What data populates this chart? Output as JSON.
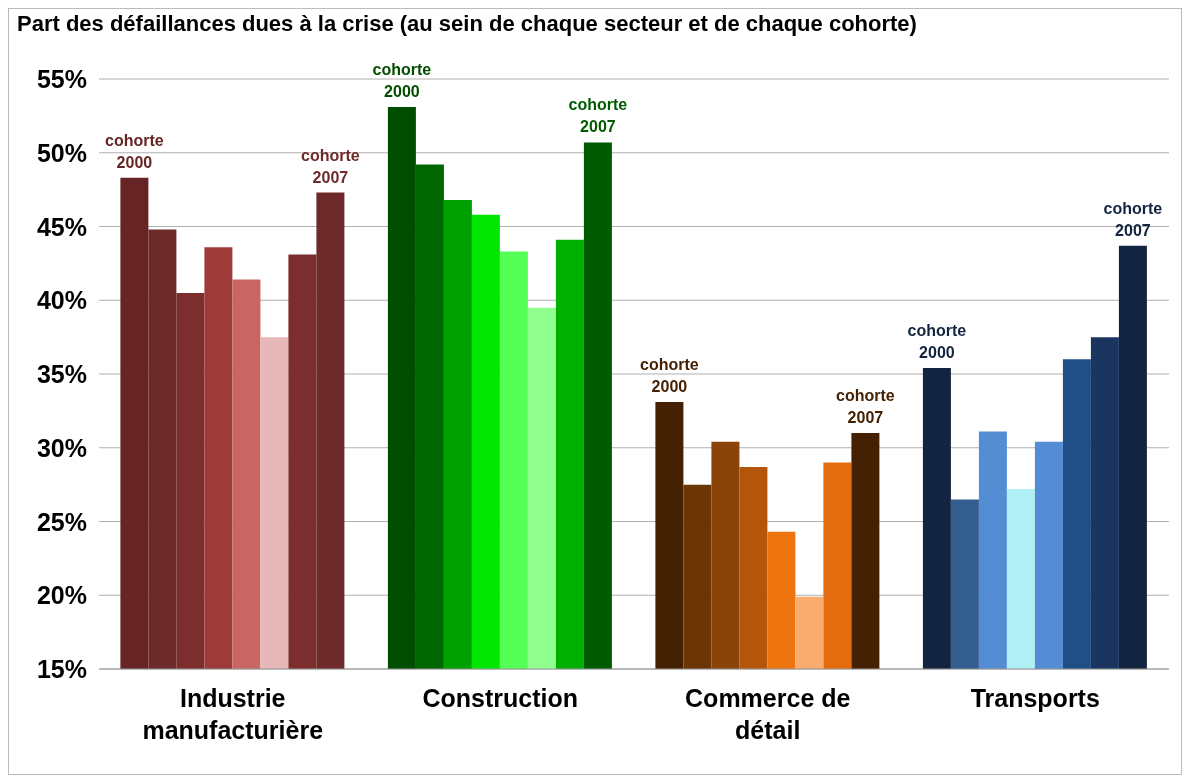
{
  "chart_data": {
    "type": "bar",
    "title": "Part des défaillances dues à la crise (au sein de chaque secteur et de chaque cohorte)",
    "categories": [
      "Industrie manufacturière",
      "Construction",
      "Commerce de détail",
      "Transports"
    ],
    "series": [
      {
        "colors": [
          "#662424",
          "#004d00",
          "#452103",
          "#12243f"
        ],
        "values": [
          48.3,
          53.1,
          33.1,
          35.4
        ]
      },
      {
        "colors": [
          "#6c2a28",
          "#006600",
          "#6b3506",
          "#355e90"
        ],
        "values": [
          44.8,
          49.2,
          27.5,
          26.5
        ]
      },
      {
        "colors": [
          "#7b2e2d",
          "#00a000",
          "#8a4309",
          "#548dd4"
        ],
        "values": [
          40.5,
          46.8,
          30.4,
          31.1
        ]
      },
      {
        "colors": [
          "#9e3b3a",
          "#00e600",
          "#b3560b",
          "#b0f0f4"
        ],
        "values": [
          43.6,
          45.8,
          28.7,
          27.2
        ]
      },
      {
        "colors": [
          "#c96663",
          "#55ff55",
          "#ee7410",
          "#548dd4"
        ],
        "values": [
          41.4,
          43.3,
          24.3,
          30.4
        ]
      },
      {
        "colors": [
          "#e6b8b7",
          "#90ff90",
          "#f8ac6d",
          "#204f88"
        ],
        "values": [
          37.5,
          39.5,
          19.9,
          36.0
        ]
      },
      {
        "colors": [
          "#7b2e2d",
          "#00b000",
          "#e36d0e",
          "#1a3660"
        ],
        "values": [
          43.1,
          44.1,
          29.0,
          37.5
        ]
      },
      {
        "colors": [
          "#6e2a29",
          "#005a00",
          "#452103",
          "#12243f"
        ],
        "values": [
          47.3,
          50.7,
          31.0,
          43.7
        ]
      }
    ],
    "ylim": [
      15,
      55
    ],
    "yticks": [
      {
        "value": 15,
        "label": "15%"
      },
      {
        "value": 20,
        "label": "20%"
      },
      {
        "value": 25,
        "label": "25%"
      },
      {
        "value": 30,
        "label": "30%"
      },
      {
        "value": 35,
        "label": "35%"
      },
      {
        "value": 40,
        "label": "40%"
      },
      {
        "value": 45,
        "label": "45%"
      },
      {
        "value": 50,
        "label": "50%"
      },
      {
        "value": 55,
        "label": "55%"
      }
    ],
    "grid": "y",
    "legend": false,
    "annotations": [
      "cohorte 2000",
      "cohorte 2007",
      "cohorte 2000",
      "cohorte 2007",
      "cohorte 2000",
      "cohorte 2007",
      "cohorte 2000",
      "cohorte 2007"
    ]
  }
}
